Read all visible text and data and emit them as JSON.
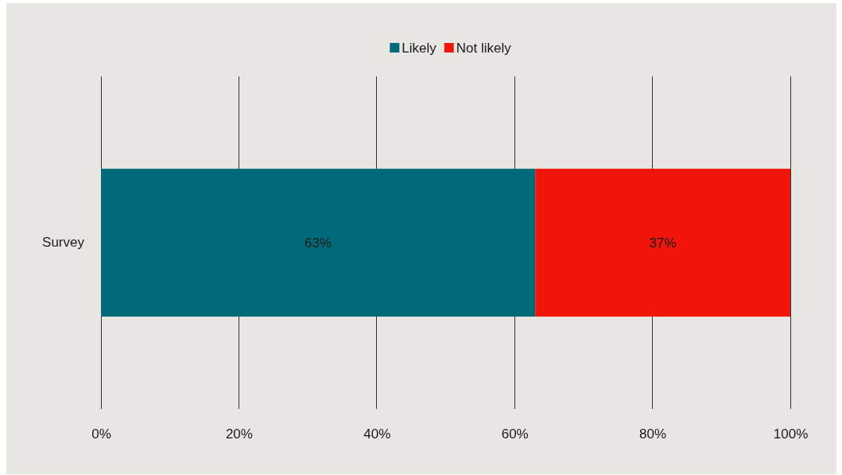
{
  "chart_data": {
    "type": "bar",
    "orientation": "horizontal",
    "stacked": true,
    "categories": [
      "Survey"
    ],
    "series": [
      {
        "name": "Likely",
        "color": "#006a78",
        "values": [
          63
        ],
        "value_labels": [
          "63%"
        ]
      },
      {
        "name": "Not likely",
        "color": "#f0140a",
        "values": [
          37
        ],
        "value_labels": [
          "37%"
        ]
      }
    ],
    "xlim": [
      0,
      100
    ],
    "xticks": [
      {
        "value": 0,
        "label": "0%"
      },
      {
        "value": 20,
        "label": "20%"
      },
      {
        "value": 40,
        "label": "40%"
      },
      {
        "value": 60,
        "label": "60%"
      },
      {
        "value": 80,
        "label": "80%"
      },
      {
        "value": 100,
        "label": "100%"
      }
    ],
    "grid": "x",
    "legend": "top"
  }
}
